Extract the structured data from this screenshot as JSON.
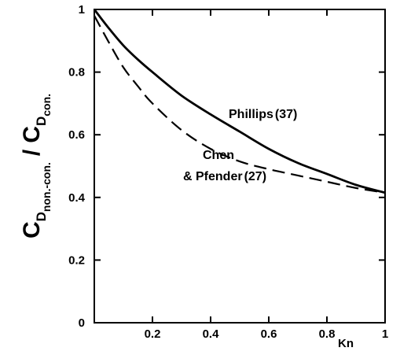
{
  "chart_data": {
    "type": "line",
    "xlabel": "Kn",
    "ylabel": {
      "numerator_symbol": "C",
      "numerator_subscript": "D",
      "numerator_sub_subscript": "non.-con.",
      "divider": "/",
      "denominator_symbol": "C",
      "denominator_subscript": "D",
      "denominator_sub_subscript": "con."
    },
    "xlim": [
      0,
      1
    ],
    "ylim": [
      0,
      1
    ],
    "xticks": [
      0.2,
      0.4,
      0.6,
      0.8,
      1
    ],
    "xtick_labels": [
      "0.2",
      "0.4",
      "0.6",
      "0.8",
      "1"
    ],
    "yticks": [
      0,
      0.2,
      0.4,
      0.6,
      0.8,
      1
    ],
    "ytick_labels": [
      "0",
      "0.2",
      "0.4",
      "0.6",
      "0.8",
      "1"
    ],
    "grid": false,
    "series": [
      {
        "name": "Phillips (37)",
        "style": "solid",
        "color": "#000000",
        "x": [
          0,
          0.05,
          0.1,
          0.15,
          0.2,
          0.3,
          0.4,
          0.5,
          0.6,
          0.7,
          0.8,
          0.9,
          1.0
        ],
        "y": [
          1.0,
          0.94,
          0.885,
          0.84,
          0.8,
          0.725,
          0.665,
          0.61,
          0.555,
          0.51,
          0.475,
          0.44,
          0.415
        ]
      },
      {
        "name": "Chen & Pfender (27)",
        "style": "dashed",
        "color": "#000000",
        "x": [
          0,
          0.05,
          0.1,
          0.15,
          0.2,
          0.3,
          0.4,
          0.5,
          0.6,
          0.7,
          0.8,
          0.9,
          1.0
        ],
        "y": [
          0.98,
          0.895,
          0.815,
          0.755,
          0.7,
          0.615,
          0.555,
          0.515,
          0.49,
          0.47,
          0.45,
          0.43,
          0.415
        ]
      }
    ],
    "annotations": [
      {
        "text": "Phillips",
        "ref": "(37)"
      },
      {
        "text": "Chen",
        "ref": ""
      },
      {
        "text": "& Pfender",
        "ref": "(27)"
      }
    ]
  }
}
